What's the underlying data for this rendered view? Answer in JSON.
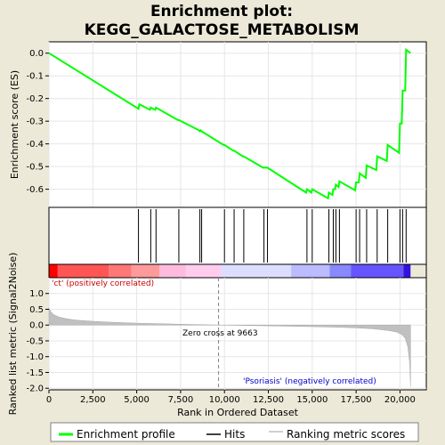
{
  "chart_data": {
    "type": "line",
    "title_line1": "Enrichment plot:",
    "title_line2": "KEGG_GALACTOSE_METABOLISM",
    "ylabel_top": "Enrichment score (ES)",
    "ylabel_bottom": "Ranked list metric (Signal2Noise)",
    "xlabel": "Rank in Ordered Dataset",
    "x_range": [
      0,
      21500
    ],
    "x_ticks": [
      0,
      2500,
      5000,
      7500,
      10000,
      12500,
      15000,
      17500,
      20000
    ],
    "x_tick_labels": [
      "0",
      "2,500",
      "5,000",
      "7,500",
      "10,000",
      "12,500",
      "15,000",
      "17,500",
      "20,000"
    ],
    "es_range": [
      -0.68,
      0.05
    ],
    "es_ticks": [
      0.0,
      -0.1,
      -0.2,
      -0.3,
      -0.4,
      -0.5,
      -0.6
    ],
    "es_tick_labels": [
      "0.0",
      "-0.1",
      "-0.2",
      "-0.3",
      "-0.4",
      "-0.5",
      "-0.6"
    ],
    "metric_range": [
      -2.05,
      1.5
    ],
    "metric_ticks": [
      1.0,
      0.5,
      0.0,
      -0.5,
      -1.0,
      -1.5,
      -2.0
    ],
    "metric_tick_labels": [
      "1.0",
      "0.5",
      "0.0",
      "-0.5",
      "-1.0",
      "-1.5",
      "-2.0"
    ],
    "enrichment_profile": {
      "name": "Enrichment profile",
      "color": "#00FF00",
      "x": [
        0,
        5100,
        5150,
        5750,
        5800,
        6050,
        6100,
        7350,
        7400,
        8550,
        8600,
        8650,
        8700,
        9950,
        10000,
        10500,
        10550,
        11050,
        11100,
        12200,
        12250,
        12400,
        12450,
        14650,
        14700,
        14950,
        15000,
        15900,
        15950,
        16150,
        16200,
        16300,
        16350,
        16500,
        16550,
        17450,
        17500,
        17650,
        17700,
        18050,
        18100,
        18650,
        18700,
        19250,
        19300,
        19950,
        20000,
        20100,
        20150,
        20300,
        20350,
        20600
      ],
      "y": [
        0.0,
        -0.245,
        -0.225,
        -0.25,
        -0.24,
        -0.25,
        -0.24,
        -0.295,
        -0.295,
        -0.34,
        -0.345,
        -0.34,
        -0.345,
        -0.405,
        -0.405,
        -0.43,
        -0.43,
        -0.455,
        -0.455,
        -0.505,
        -0.505,
        -0.505,
        -0.505,
        -0.615,
        -0.6,
        -0.615,
        -0.6,
        -0.64,
        -0.615,
        -0.625,
        -0.6,
        -0.6,
        -0.58,
        -0.59,
        -0.565,
        -0.605,
        -0.57,
        -0.57,
        -0.53,
        -0.55,
        -0.495,
        -0.515,
        -0.455,
        -0.475,
        -0.405,
        -0.44,
        -0.31,
        -0.31,
        -0.165,
        -0.165,
        0.015,
        0.0
      ]
    },
    "hits": [
      5100,
      5800,
      6100,
      7400,
      8600,
      8700,
      10000,
      10550,
      11100,
      12250,
      12450,
      14700,
      15000,
      15950,
      16200,
      16350,
      16550,
      17500,
      17700,
      18100,
      18700,
      19300,
      20000,
      20150,
      20350
    ],
    "ranking_metric": {
      "name": "Ranking metric scores",
      "x": [
        0,
        100,
        300,
        600,
        1000,
        1500,
        2500,
        3500,
        5000,
        6500,
        8000,
        9663,
        11000,
        13000,
        15000,
        16500,
        17500,
        18500,
        19300,
        19800,
        20100,
        20300,
        20450,
        20550,
        20600
      ],
      "y": [
        0.55,
        0.42,
        0.32,
        0.25,
        0.2,
        0.16,
        0.12,
        0.09,
        0.06,
        0.04,
        0.02,
        0.0,
        -0.01,
        -0.03,
        -0.05,
        -0.07,
        -0.09,
        -0.12,
        -0.17,
        -0.22,
        -0.3,
        -0.42,
        -0.7,
        -1.2,
        -1.95
      ]
    },
    "zero_cross": 9663,
    "zero_cross_label": "Zero cross at 9663",
    "pos_label": "'ct' (positively correlated)",
    "neg_label": "'Psoriasis' (negatively correlated)",
    "legend": [
      "Enrichment profile",
      "Hits",
      "Ranking metric scores"
    ],
    "legend_placement": "bottom",
    "colors": {
      "profile": "#00FF00",
      "hit": "#000000",
      "metric_fill": "#C0C0C0",
      "pos_label": "#CC0000",
      "neg_label": "#0000CC",
      "background": "#ECE9D8"
    },
    "heat_bar": [
      {
        "from": 0,
        "to": 500,
        "color": "#FF0000"
      },
      {
        "from": 500,
        "to": 3400,
        "color": "#FF5555"
      },
      {
        "from": 3400,
        "to": 4700,
        "color": "#FF7777"
      },
      {
        "from": 4700,
        "to": 6300,
        "color": "#FF9A9A"
      },
      {
        "from": 6300,
        "to": 7800,
        "color": "#FFBBDD"
      },
      {
        "from": 7800,
        "to": 9800,
        "color": "#FFCCEE"
      },
      {
        "from": 9800,
        "to": 13800,
        "color": "#DDDDFF"
      },
      {
        "from": 13800,
        "to": 16000,
        "color": "#BBBBFF"
      },
      {
        "from": 16000,
        "to": 17200,
        "color": "#8888FF"
      },
      {
        "from": 17200,
        "to": 20200,
        "color": "#6655FF"
      },
      {
        "from": 20200,
        "to": 20600,
        "color": "#3311DD"
      }
    ]
  }
}
